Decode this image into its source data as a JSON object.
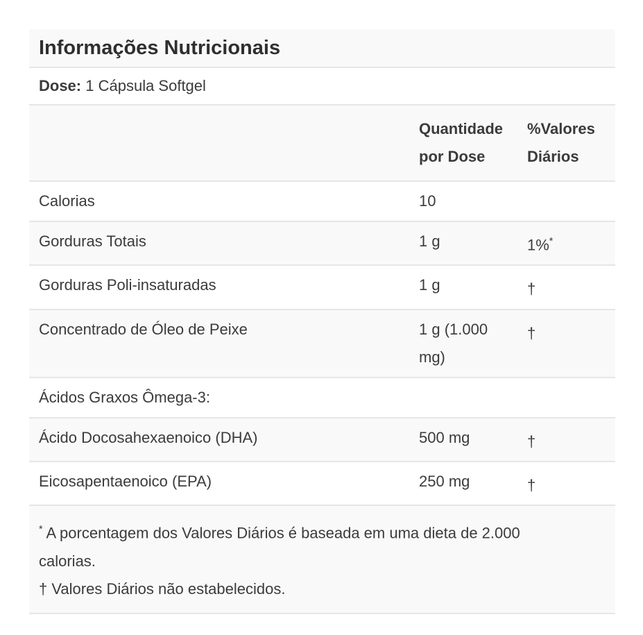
{
  "colors": {
    "stripe_background": "#f9f9f9",
    "divider": "#e6e6e6",
    "text": "#3b3b3b",
    "page_background": "#ffffff"
  },
  "nutrition_label": {
    "title": "Informações Nutricionais",
    "serving": {
      "label": "Dose:",
      "value": "1 Cápsula Softgel"
    },
    "header": {
      "amount_column": "Quantidade por Dose",
      "daily_values_column": "%Valores Diários"
    },
    "rows": [
      {
        "name": "Calorias",
        "amount": "10",
        "dv": "",
        "dv_sup": ""
      },
      {
        "name": "Gorduras Totais",
        "amount": "1 g",
        "dv": "1%",
        "dv_sup": "*"
      },
      {
        "name": "Gorduras Poli-insaturadas",
        "amount": "1 g",
        "dv": "†",
        "dv_sup": ""
      },
      {
        "name": "Concentrado de Óleo de Peixe",
        "amount": "1 g (1.000 mg)",
        "dv": "†",
        "dv_sup": ""
      },
      {
        "name": "Ácidos Graxos Ômega-3:",
        "amount": "",
        "dv": "",
        "dv_sup": ""
      },
      {
        "name": "Ácido Docosahexaenoico (DHA)",
        "amount": "500 mg",
        "dv": "†",
        "dv_sup": ""
      },
      {
        "name": "Eicosapentaenoico (EPA)",
        "amount": "250 mg",
        "dv": "†",
        "dv_sup": ""
      }
    ],
    "footnotes": [
      {
        "marker": "*",
        "text": "A porcentagem dos Valores Diários é baseada em uma dieta de 2.000 calorias."
      },
      {
        "marker": "†",
        "text": "Valores Diários não estabelecidos."
      }
    ]
  }
}
